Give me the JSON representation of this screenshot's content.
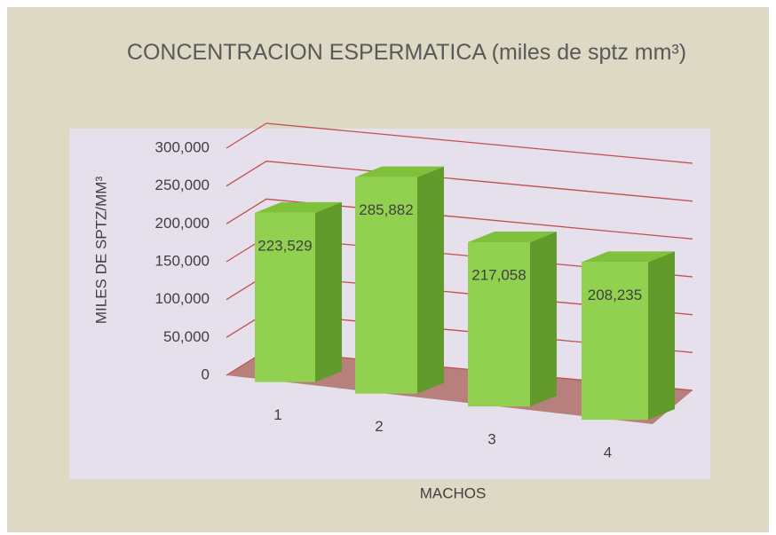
{
  "chart_data": {
    "type": "bar3d",
    "title": "CONCENTRACION ESPERMATICA (miles de  sptz mm³)",
    "x_label": "MACHOS",
    "y_label": "MILES DE SPTZ/MM³",
    "categories": [
      "1",
      "2",
      "3",
      "4"
    ],
    "values": [
      223529,
      285882,
      217058,
      208235
    ],
    "value_labels": [
      "223,529",
      "285,882",
      "217,058",
      "208,235"
    ],
    "color": "#92d050",
    "ylim": [
      0,
      300000
    ],
    "yticks": [
      0,
      {
        "value": 50000,
        "label": "50,000"
      },
      {
        "value": 100000,
        "label": "100,000"
      },
      {
        "value": 150000,
        "label": "150,000"
      },
      {
        "value": 200000,
        "label": "200,000"
      },
      {
        "value": 250000,
        "label": "250,000"
      },
      {
        "value": 300000,
        "label": "300,000"
      }
    ],
    "grid": true
  }
}
